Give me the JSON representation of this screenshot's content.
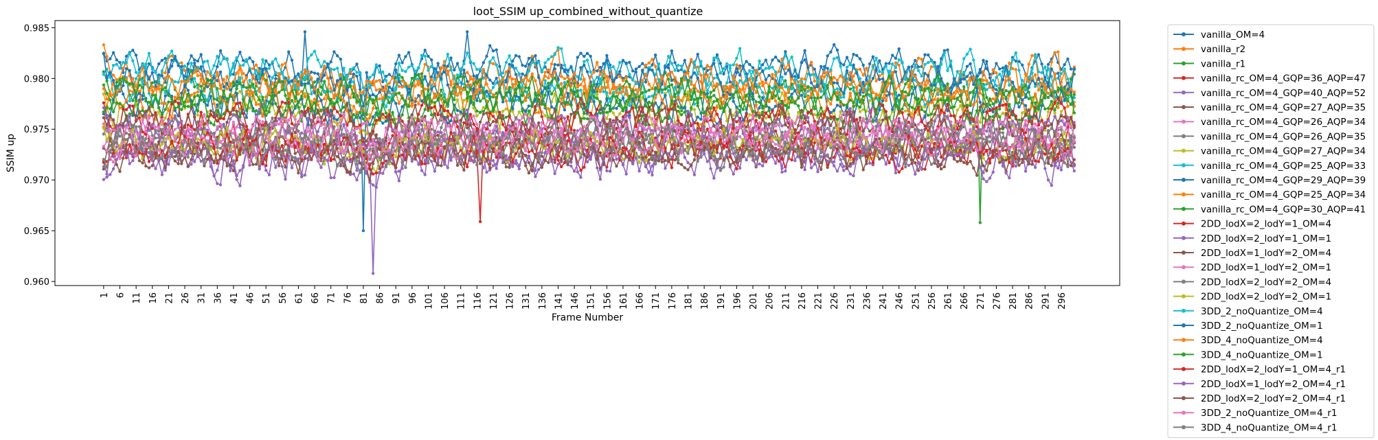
{
  "chart_data": {
    "type": "line",
    "title": "loot_SSIM up_combined_without_quantize",
    "xlabel": "Frame Number",
    "ylabel": "SSIM up",
    "xlim": [
      -14,
      314
    ],
    "ylim": [
      0.9596,
      0.9857
    ],
    "x_ticks": [
      1,
      6,
      11,
      16,
      21,
      26,
      31,
      36,
      41,
      46,
      51,
      56,
      61,
      66,
      71,
      76,
      81,
      86,
      91,
      96,
      101,
      106,
      111,
      116,
      121,
      126,
      131,
      136,
      141,
      146,
      151,
      156,
      161,
      166,
      171,
      176,
      181,
      186,
      191,
      196,
      201,
      206,
      211,
      216,
      221,
      226,
      231,
      236,
      241,
      246,
      251,
      256,
      261,
      266,
      271,
      276,
      281,
      286,
      291,
      296
    ],
    "y_ticks": [
      0.96,
      0.965,
      0.97,
      0.975,
      0.98,
      0.985
    ],
    "y_tick_labels": [
      "0.960",
      "0.965",
      "0.970",
      "0.975",
      "0.980",
      "0.985"
    ],
    "x_range": [
      1,
      300
    ],
    "legend_position": "outside-right",
    "series": [
      {
        "name": "vanilla_OM=4",
        "color": "#1f77b4",
        "base": 0.9812,
        "amp": 0.0022
      },
      {
        "name": "vanilla_r2",
        "color": "#ff7f0e",
        "base": 0.98,
        "amp": 0.0026
      },
      {
        "name": "vanilla_r1",
        "color": "#2ca02c",
        "base": 0.9788,
        "amp": 0.0022
      },
      {
        "name": "vanilla_rc_OM=4_GQP=36_AQP=47",
        "color": "#d62728",
        "base": 0.9735,
        "amp": 0.0024
      },
      {
        "name": "vanilla_rc_OM=4_GQP=40_AQP=52",
        "color": "#9467bd",
        "base": 0.9722,
        "amp": 0.0026
      },
      {
        "name": "vanilla_rc_OM=4_GQP=27_AQP=35",
        "color": "#8c564b",
        "base": 0.9728,
        "amp": 0.0022
      },
      {
        "name": "vanilla_rc_OM=4_GQP=26_AQP=34",
        "color": "#e377c2",
        "base": 0.9745,
        "amp": 0.0022
      },
      {
        "name": "vanilla_rc_OM=4_GQP=26_AQP=35",
        "color": "#7f7f7f",
        "base": 0.9742,
        "amp": 0.0022
      },
      {
        "name": "vanilla_rc_OM=4_GQP=27_AQP=34",
        "color": "#bcbd22",
        "base": 0.9765,
        "amp": 0.0024
      },
      {
        "name": "vanilla_rc_OM=4_GQP=25_AQP=33",
        "color": "#17becf",
        "base": 0.979,
        "amp": 0.0024
      },
      {
        "name": "vanilla_rc_OM=4_GQP=29_AQP=39",
        "color": "#1f77b4",
        "base": 0.9775,
        "amp": 0.0024
      },
      {
        "name": "vanilla_rc_OM=4_GQP=25_AQP=34",
        "color": "#ff7f0e",
        "base": 0.978,
        "amp": 0.0024
      },
      {
        "name": "vanilla_rc_OM=4_GQP=30_AQP=41",
        "color": "#2ca02c",
        "base": 0.977,
        "amp": 0.0022
      },
      {
        "name": "2DD_lodX=2_lodY=1_OM=4",
        "color": "#d62728",
        "base": 0.976,
        "amp": 0.0022
      },
      {
        "name": "2DD_lodX=2_lodY=1_OM=1",
        "color": "#9467bd",
        "base": 0.9752,
        "amp": 0.0022
      },
      {
        "name": "2DD_lodX=1_lodY=2_OM=4",
        "color": "#8c564b",
        "base": 0.9755,
        "amp": 0.0022
      },
      {
        "name": "2DD_lodX=1_lodY=2_OM=1",
        "color": "#e377c2",
        "base": 0.9748,
        "amp": 0.0022
      },
      {
        "name": "2DD_lodX=2_lodY=2_OM=4",
        "color": "#7f7f7f",
        "base": 0.974,
        "amp": 0.0022
      },
      {
        "name": "2DD_lodX=2_lodY=2_OM=1",
        "color": "#bcbd22",
        "base": 0.9735,
        "amp": 0.0022
      },
      {
        "name": "3DD_2_noQuantize_OM=4",
        "color": "#17becf",
        "base": 0.9808,
        "amp": 0.0022
      },
      {
        "name": "3DD_2_noQuantize_OM=1",
        "color": "#1f77b4",
        "base": 0.98,
        "amp": 0.0022
      },
      {
        "name": "3DD_4_noQuantize_OM=4",
        "color": "#ff7f0e",
        "base": 0.9795,
        "amp": 0.0022
      },
      {
        "name": "3DD_4_noQuantize_OM=1",
        "color": "#2ca02c",
        "base": 0.9785,
        "amp": 0.0022
      },
      {
        "name": "2DD_lodX=2_lodY=1_OM=4_r1",
        "color": "#d62728",
        "base": 0.973,
        "amp": 0.0022
      },
      {
        "name": "2DD_lodX=1_lodY=2_OM=4_r1",
        "color": "#9467bd",
        "base": 0.972,
        "amp": 0.0024
      },
      {
        "name": "2DD_lodX=2_lodY=2_OM=4_r1",
        "color": "#8c564b",
        "base": 0.9725,
        "amp": 0.0022
      },
      {
        "name": "3DD_2_noQuantize_OM=4_r1",
        "color": "#e377c2",
        "base": 0.9738,
        "amp": 0.0022
      },
      {
        "name": "3DD_4_noQuantize_OM=4_r1",
        "color": "#7f7f7f",
        "base": 0.9732,
        "amp": 0.0022
      }
    ],
    "notable_points": [
      {
        "series": "vanilla_rc_OM=4_GQP=40_AQP=52",
        "x": 84,
        "y": 0.9608
      },
      {
        "series": "vanilla_OM=4",
        "x": 81,
        "y": 0.965
      },
      {
        "series": "vanilla_r1",
        "x": 271,
        "y": 0.9658
      },
      {
        "series": "vanilla_rc_OM=4_GQP=36_AQP=47",
        "x": 117,
        "y": 0.9659
      },
      {
        "series": "vanilla_OM=4",
        "x": 63,
        "y": 0.9846
      },
      {
        "series": "vanilla_OM=4",
        "x": 113,
        "y": 0.9846
      }
    ]
  }
}
